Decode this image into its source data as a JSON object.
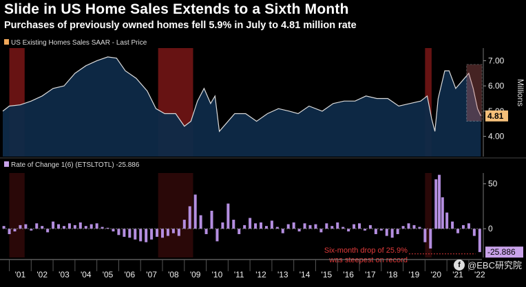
{
  "header": {
    "title": "Slide in US Home Sales Extends to a Sixth Month",
    "subtitle": "Purchases of previously owned homes fell 5.9% in July to 4.81 million rate"
  },
  "watermark": {
    "text": "@EBC研究院",
    "logo": "ebc-logo-icon"
  },
  "colors": {
    "background": "#000000",
    "area_fill": "#0e2a48",
    "line": "#dcdcdc",
    "legend_swatch_top": "#f1a85a",
    "legend_swatch_bottom": "#c9a3ea",
    "bars": "#b48ee0",
    "recession_shade": "#8a1a1a",
    "last_value_badge": "#f5c07a",
    "rate_badge": "#c9a3ea",
    "annotation": "#e23b3b"
  },
  "chart_data": [
    {
      "type": "area",
      "legend": "US Existing Homes Sales SAAR - Last Price",
      "ylabel": "Millions",
      "ylim": [
        3.2,
        7.5
      ],
      "yticks": [
        "7.00",
        "6.00",
        "5.00",
        "4.00"
      ],
      "last_value_label": "4.81",
      "x_range": [
        2000.7,
        2022.6
      ],
      "x": [
        2000.7,
        2001.0,
        2001.5,
        2002.0,
        2002.5,
        2003.0,
        2003.5,
        2004.0,
        2004.5,
        2005.0,
        2005.5,
        2005.9,
        2006.3,
        2006.8,
        2007.3,
        2007.7,
        2008.1,
        2008.6,
        2009.0,
        2009.3,
        2009.6,
        2009.9,
        2010.2,
        2010.4,
        2010.6,
        2010.9,
        2011.3,
        2011.8,
        2012.3,
        2012.8,
        2013.3,
        2013.8,
        2014.2,
        2014.7,
        2015.3,
        2015.8,
        2016.3,
        2016.8,
        2017.3,
        2017.8,
        2018.3,
        2018.8,
        2019.3,
        2019.8,
        2020.1,
        2020.3,
        2020.45,
        2020.6,
        2020.9,
        2021.1,
        2021.4,
        2021.7,
        2022.0,
        2022.2,
        2022.4,
        2022.55
      ],
      "values": [
        5.0,
        5.2,
        5.25,
        5.4,
        5.6,
        5.9,
        6.0,
        6.5,
        6.8,
        7.0,
        7.15,
        7.1,
        6.6,
        6.3,
        5.8,
        5.1,
        4.9,
        4.9,
        4.4,
        4.6,
        5.4,
        5.9,
        5.3,
        5.6,
        4.2,
        4.5,
        4.9,
        4.9,
        4.6,
        4.9,
        5.1,
        5.0,
        4.9,
        5.2,
        5.0,
        5.3,
        5.4,
        5.4,
        5.6,
        5.5,
        5.5,
        5.2,
        5.3,
        5.4,
        5.6,
        4.7,
        4.2,
        5.5,
        6.6,
        6.6,
        5.9,
        6.2,
        6.5,
        5.9,
        5.1,
        4.81
      ],
      "recessions": [
        [
          2001.0,
          2001.7
        ],
        [
          2007.8,
          2009.4
        ],
        [
          2020.0,
          2020.3
        ]
      ],
      "highlight_box": [
        2021.9,
        2022.6
      ]
    },
    {
      "type": "bar",
      "legend": "Rate of Change 1(6) (ETSLTOTL) -25.886",
      "ylim": [
        -32,
        62
      ],
      "yticks": [
        "50",
        "0"
      ],
      "last_value_label": "-25.886",
      "x_range": [
        2000.7,
        2022.6
      ],
      "x": [
        2000.75,
        2001.0,
        2001.25,
        2001.5,
        2001.75,
        2002.0,
        2002.25,
        2002.5,
        2002.75,
        2003.0,
        2003.25,
        2003.5,
        2003.75,
        2004.0,
        2004.25,
        2004.5,
        2004.75,
        2005.0,
        2005.25,
        2005.5,
        2005.75,
        2006.0,
        2006.25,
        2006.5,
        2006.75,
        2007.0,
        2007.25,
        2007.5,
        2007.75,
        2008.0,
        2008.25,
        2008.5,
        2008.75,
        2009.0,
        2009.25,
        2009.5,
        2009.75,
        2010.0,
        2010.25,
        2010.5,
        2010.75,
        2011.0,
        2011.25,
        2011.5,
        2011.75,
        2012.0,
        2012.25,
        2012.5,
        2012.75,
        2013.0,
        2013.25,
        2013.5,
        2013.75,
        2014.0,
        2014.25,
        2014.5,
        2014.75,
        2015.0,
        2015.25,
        2015.5,
        2015.75,
        2016.0,
        2016.25,
        2016.5,
        2016.75,
        2017.0,
        2017.25,
        2017.5,
        2017.75,
        2018.0,
        2018.25,
        2018.5,
        2018.75,
        2019.0,
        2019.25,
        2019.5,
        2019.75,
        2020.0,
        2020.25,
        2020.5,
        2020.65,
        2020.8,
        2021.0,
        2021.25,
        2021.5,
        2021.75,
        2022.0,
        2022.25,
        2022.5
      ],
      "values": [
        3,
        -6,
        -3,
        4,
        5,
        -2,
        6,
        3,
        -4,
        8,
        5,
        3,
        6,
        4,
        7,
        3,
        5,
        6,
        2,
        1,
        -3,
        -7,
        -9,
        -10,
        -12,
        -14,
        -15,
        -12,
        -9,
        -10,
        -8,
        -5,
        -8,
        10,
        25,
        38,
        15,
        -6,
        20,
        -14,
        7,
        28,
        10,
        -6,
        4,
        12,
        6,
        7,
        3,
        9,
        2,
        -5,
        5,
        7,
        -3,
        6,
        4,
        5,
        -4,
        6,
        3,
        7,
        2,
        -3,
        5,
        6,
        -2,
        4,
        -6,
        -2,
        -8,
        -10,
        -6,
        3,
        6,
        4,
        2,
        -15,
        -22,
        55,
        60,
        35,
        18,
        8,
        -5,
        4,
        6,
        -8,
        -26
      ],
      "annotation": "Six-month drop of 25.9% was steepest on record",
      "annotation_lines": [
        "Six-month drop of 25.9%",
        "was steepest on record"
      ]
    }
  ],
  "x_axis": {
    "tick_labels": [
      "'01",
      "'02",
      "'03",
      "'04",
      "'05",
      "'06",
      "'07",
      "'08",
      "'09",
      "'10",
      "'11",
      "'12",
      "'13",
      "'14",
      "'15",
      "'16",
      "'17",
      "'18",
      "'19",
      "'20",
      "'21",
      "'22"
    ]
  }
}
